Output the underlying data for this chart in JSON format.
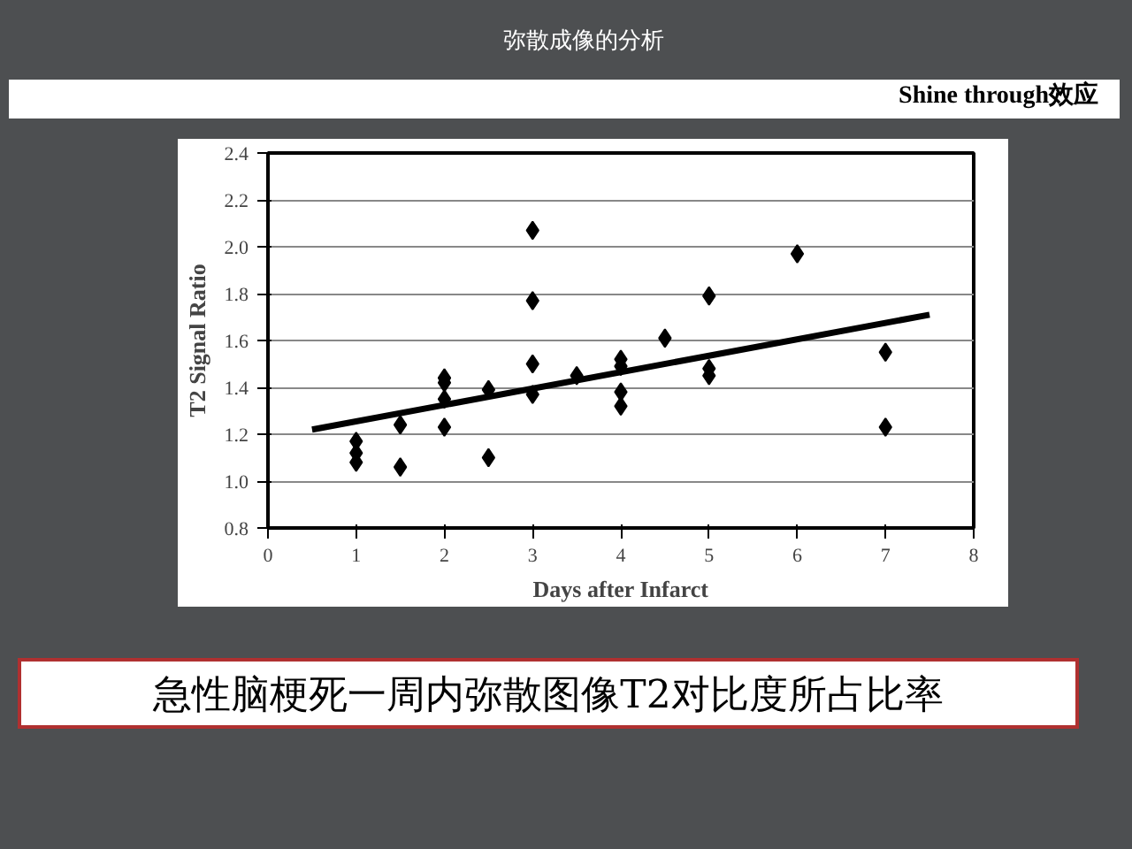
{
  "chart_data": {
    "type": "scatter",
    "title": "弥散成像的分析",
    "subtitle": "Shine through效应",
    "xlabel": "Days after Infarct",
    "ylabel": "T2 Signal Ratio",
    "annotations": [
      "急性脑梗死一周内弥散图像T2对比度所占比率"
    ],
    "xlim": [
      0,
      8
    ],
    "xticks": [
      0,
      1,
      2,
      3,
      4,
      5,
      6,
      7,
      8
    ],
    "ylim": [
      0.8,
      2.4
    ],
    "yticks": [
      {
        "value": 0.8,
        "label": "0.8"
      },
      {
        "value": 1.0,
        "label": "1.0"
      },
      {
        "value": 1.2,
        "label": "1.2"
      },
      {
        "value": 1.4,
        "label": "1.4"
      },
      {
        "value": 1.6,
        "label": "1.6"
      },
      {
        "value": 1.8,
        "label": "1.8"
      },
      {
        "value": 2.0,
        "label": "2.0"
      },
      {
        "value": 2.2,
        "label": "2.2"
      },
      {
        "value": 2.4,
        "label": "2.4"
      }
    ],
    "grid": "y",
    "marker": "diamond",
    "series": [
      {
        "color": "#000000",
        "x": [
          1,
          1,
          1,
          1.5,
          1.5,
          2,
          2,
          2,
          2,
          2.5,
          2.5,
          3,
          3,
          3,
          3,
          3.5,
          4,
          4,
          4,
          4,
          4.5,
          5,
          5,
          5,
          6,
          7,
          7
        ],
        "values": [
          1.17,
          1.12,
          1.08,
          1.24,
          1.06,
          1.44,
          1.42,
          1.35,
          1.23,
          1.39,
          1.1,
          2.07,
          1.77,
          1.5,
          1.37,
          1.45,
          1.52,
          1.49,
          1.38,
          1.32,
          1.61,
          1.79,
          1.48,
          1.45,
          1.97,
          1.55,
          1.23
        ]
      },
      {
        "type": "line",
        "color": "#000000",
        "x": [
          0.5,
          7.5
        ],
        "values": [
          1.22,
          1.71
        ],
        "line_style": "solid",
        "marker": "none"
      }
    ]
  }
}
